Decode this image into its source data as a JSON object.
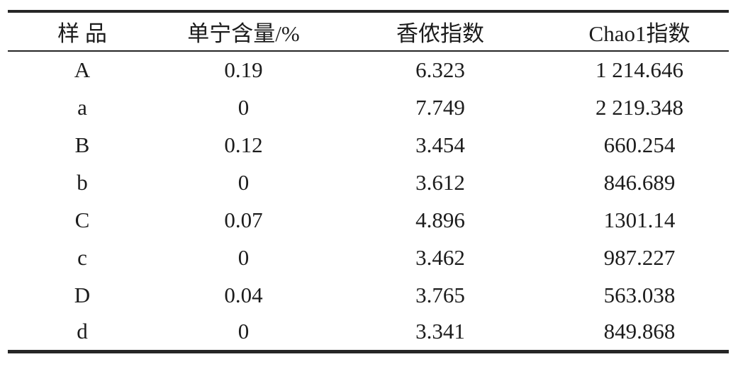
{
  "page": {
    "background": "#ffffff",
    "rule_color": "#262626",
    "text_color": "#1c1c1c"
  },
  "table": {
    "columns": [
      "样 品",
      "单宁含量/%",
      "香侬指数",
      "Chao1指数"
    ],
    "rows": [
      [
        "A",
        "0.19",
        "6.323",
        "1 214.646"
      ],
      [
        "a",
        "0",
        "7.749",
        "2 219.348"
      ],
      [
        "B",
        "0.12",
        "3.454",
        "660.254"
      ],
      [
        "b",
        "0",
        "3.612",
        "846.689"
      ],
      [
        "C",
        "0.07",
        "4.896",
        "1301.14"
      ],
      [
        "c",
        "0",
        "3.462",
        "987.227"
      ],
      [
        "D",
        "0.04",
        "3.765",
        "563.038"
      ],
      [
        "d",
        "0",
        "3.341",
        "849.868"
      ]
    ]
  }
}
